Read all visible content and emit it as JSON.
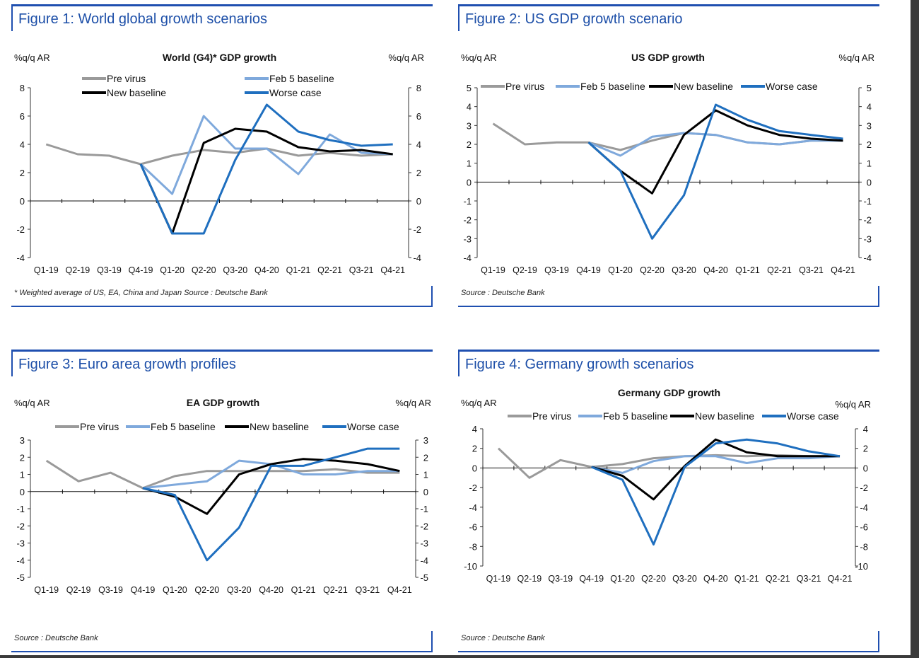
{
  "panels": [
    {
      "figure_title": "Figure 1: World global growth scenarios",
      "source": "* Weighted average of US, EA, China and Japan Source : Deutsche Bank",
      "chart": {
        "type": "line",
        "title": "World (G4)* GDP growth",
        "ylabel_left": "%q/q AR",
        "ylabel_right": "%q/q AR",
        "ylim": [
          -4,
          8
        ],
        "yticks": [
          -4,
          -2,
          0,
          2,
          4,
          6,
          8
        ],
        "categories": [
          "Q1-19",
          "Q2-19",
          "Q3-19",
          "Q4-19",
          "Q1-20",
          "Q2-20",
          "Q3-20",
          "Q4-20",
          "Q1-21",
          "Q2-21",
          "Q3-21",
          "Q4-21"
        ],
        "legend": [
          "Pre virus",
          "Feb 5 baseline",
          "New baseline",
          "Worse case"
        ],
        "series": [
          {
            "name": "Pre virus",
            "color": "#9a9a9a",
            "values": [
              4.0,
              3.3,
              3.2,
              2.6,
              3.2,
              3.6,
              3.4,
              3.7,
              3.2,
              3.4,
              3.2,
              3.3
            ]
          },
          {
            "name": "Feb 5 baseline",
            "color": "#7fa9dc",
            "values": [
              null,
              null,
              null,
              2.6,
              0.5,
              6.0,
              3.7,
              3.7,
              1.9,
              4.7,
              3.4,
              3.3
            ]
          },
          {
            "name": "New baseline",
            "color": "#000000",
            "values": [
              null,
              null,
              null,
              2.6,
              -2.3,
              4.1,
              5.1,
              4.9,
              3.8,
              3.5,
              3.6,
              3.3
            ]
          },
          {
            "name": "Worse case",
            "color": "#1f6fbf",
            "values": [
              null,
              null,
              null,
              2.6,
              -2.3,
              -2.3,
              2.9,
              6.8,
              4.9,
              4.3,
              3.9,
              4.0
            ]
          }
        ]
      }
    },
    {
      "figure_title": "Figure 2: US GDP growth scenario",
      "source": "Source : Deutsche Bank",
      "chart": {
        "type": "line",
        "title": "US GDP growth",
        "ylabel_left": "%q/q AR",
        "ylabel_right": "%q/q AR",
        "ylim": [
          -4,
          5
        ],
        "yticks": [
          -4,
          -3,
          -2,
          -1,
          0,
          1,
          2,
          3,
          4,
          5
        ],
        "categories": [
          "Q1-19",
          "Q2-19",
          "Q3-19",
          "Q4-19",
          "Q1-20",
          "Q2-20",
          "Q3-20",
          "Q4-20",
          "Q1-21",
          "Q2-21",
          "Q3-21",
          "Q4-21"
        ],
        "legend": [
          "Pre virus",
          "Feb 5 baseline",
          "New baseline",
          "Worse case"
        ],
        "series": [
          {
            "name": "Pre virus",
            "color": "#9a9a9a",
            "values": [
              3.1,
              2.0,
              2.1,
              2.1,
              1.7,
              2.2,
              2.6,
              2.5,
              2.1,
              2.0,
              2.2,
              2.2
            ]
          },
          {
            "name": "Feb 5 baseline",
            "color": "#7fa9dc",
            "values": [
              null,
              null,
              null,
              2.1,
              1.4,
              2.4,
              2.6,
              2.5,
              2.1,
              2.0,
              2.2,
              2.2
            ]
          },
          {
            "name": "New baseline",
            "color": "#000000",
            "values": [
              null,
              null,
              null,
              2.1,
              0.6,
              -0.6,
              2.5,
              3.8,
              3.0,
              2.5,
              2.3,
              2.2
            ]
          },
          {
            "name": "Worse case",
            "color": "#1f6fbf",
            "values": [
              null,
              null,
              null,
              2.1,
              0.6,
              -3.0,
              -0.7,
              4.1,
              3.3,
              2.7,
              2.5,
              2.3
            ]
          }
        ]
      }
    },
    {
      "figure_title": "Figure 3: Euro area growth profiles",
      "source": "Source : Deutsche Bank",
      "chart": {
        "type": "line",
        "title": "EA GDP growth",
        "ylabel_left": "%q/q AR",
        "ylabel_right": "%q/q AR",
        "ylim": [
          -5,
          3
        ],
        "yticks": [
          -5,
          -4,
          -3,
          -2,
          -1,
          0,
          1,
          2,
          3
        ],
        "categories": [
          "Q1-19",
          "Q2-19",
          "Q3-19",
          "Q4-19",
          "Q1-20",
          "Q2-20",
          "Q3-20",
          "Q4-20",
          "Q1-21",
          "Q2-21",
          "Q3-21",
          "Q4-21"
        ],
        "legend": [
          "Pre virus",
          "Feb 5 baseline",
          "New baseline",
          "Worse case"
        ],
        "series": [
          {
            "name": "Pre virus",
            "color": "#9a9a9a",
            "values": [
              1.8,
              0.6,
              1.1,
              0.2,
              0.9,
              1.2,
              1.2,
              1.2,
              1.2,
              1.3,
              1.1,
              1.1
            ]
          },
          {
            "name": "Feb 5 baseline",
            "color": "#7fa9dc",
            "values": [
              null,
              null,
              null,
              0.2,
              0.4,
              0.6,
              1.8,
              1.6,
              1.0,
              1.0,
              1.2,
              1.2
            ]
          },
          {
            "name": "New baseline",
            "color": "#000000",
            "values": [
              null,
              null,
              null,
              0.2,
              -0.3,
              -1.3,
              1.0,
              1.6,
              1.9,
              1.8,
              1.6,
              1.2
            ]
          },
          {
            "name": "Worse case",
            "color": "#1f6fbf",
            "values": [
              null,
              null,
              null,
              0.2,
              -0.2,
              -4.0,
              -2.1,
              1.5,
              1.5,
              2.0,
              2.5,
              2.5
            ]
          }
        ]
      }
    },
    {
      "figure_title": "Figure 4: Germany growth scenarios",
      "source": "Source : Deutsche Bank",
      "chart": {
        "type": "line",
        "title": "Germany GDP growth",
        "ylabel_left": "%q/q AR",
        "ylabel_right": "%q/q AR",
        "ylim": [
          -10,
          4
        ],
        "yticks": [
          -10,
          -8,
          -6,
          -4,
          -2,
          0,
          2,
          4
        ],
        "categories": [
          "Q1-19",
          "Q2-19",
          "Q3-19",
          "Q4-19",
          "Q1-20",
          "Q2-20",
          "Q3-20",
          "Q4-20",
          "Q1-21",
          "Q2-21",
          "Q3-21",
          "Q4-21"
        ],
        "legend": [
          "Pre virus",
          "Feb 5 baseline",
          "New baseline",
          "Worse case"
        ],
        "series": [
          {
            "name": "Pre virus",
            "color": "#9a9a9a",
            "values": [
              2.0,
              -1.0,
              0.8,
              0.1,
              0.4,
              1.0,
              1.2,
              1.3,
              1.2,
              1.3,
              1.2,
              1.2
            ]
          },
          {
            "name": "Feb 5 baseline",
            "color": "#7fa9dc",
            "values": [
              null,
              null,
              null,
              0.1,
              -0.5,
              0.7,
              1.2,
              1.2,
              0.5,
              1.0,
              1.0,
              1.2
            ]
          },
          {
            "name": "New baseline",
            "color": "#000000",
            "values": [
              null,
              null,
              null,
              0.1,
              -0.8,
              -3.2,
              0.2,
              2.9,
              1.6,
              1.2,
              1.2,
              1.2
            ]
          },
          {
            "name": "Worse case",
            "color": "#1f6fbf",
            "values": [
              null,
              null,
              null,
              0.1,
              -1.2,
              -7.8,
              0.1,
              2.5,
              2.9,
              2.5,
              1.7,
              1.2
            ]
          }
        ]
      }
    }
  ]
}
